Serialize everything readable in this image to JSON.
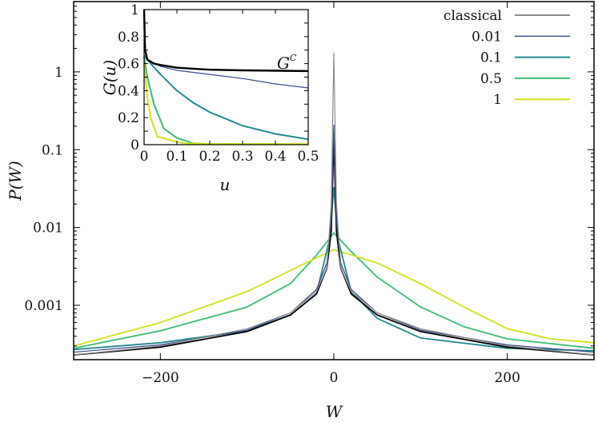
{
  "chart_data": [
    {
      "type": "line",
      "xlabel": "W",
      "ylabel": "P(W)",
      "xlim": [
        -300,
        300
      ],
      "ylim": [
        0.0002,
        8
      ],
      "yscale": "log",
      "grid": false,
      "legend_placement": "top-right",
      "x_ticks": [
        -200,
        0,
        200
      ],
      "x_tick_labels": [
        "−200",
        "0",
        "200"
      ],
      "y_ticks": [
        1,
        0.1,
        0.01,
        0.001
      ],
      "y_tick_labels": [
        "1",
        "0.1",
        "0.01",
        "0.001"
      ],
      "series": [
        {
          "name": "classical",
          "color": "#8c8c8c",
          "x": [
            -300,
            -200,
            -100,
            -50,
            -20,
            -8,
            -3,
            0,
            3,
            8,
            20,
            50,
            100,
            200,
            300
          ],
          "y": [
            0.00023,
            0.0003,
            0.0005,
            0.0008,
            0.0015,
            0.003,
            0.02,
            1.75,
            0.02,
            0.003,
            0.0015,
            0.0008,
            0.0005,
            0.0003,
            0.00023
          ]
        },
        {
          "name": "0.01",
          "color": "#3b4b8c",
          "x": [
            -300,
            -200,
            -100,
            -50,
            -20,
            -8,
            -3,
            0,
            3,
            8,
            20,
            50,
            100,
            200,
            300
          ],
          "y": [
            0.00025,
            0.00031,
            0.00048,
            0.0008,
            0.0016,
            0.0035,
            0.012,
            0.21,
            0.012,
            0.0035,
            0.0016,
            0.0008,
            0.00048,
            0.00031,
            0.00025
          ]
        },
        {
          "name": "0.1",
          "color": "#23898e",
          "x": [
            -300,
            -200,
            -100,
            -50,
            -20,
            -5,
            0,
            5,
            20,
            50,
            100,
            200,
            300
          ],
          "y": [
            0.00027,
            0.00033,
            0.00047,
            0.00075,
            0.0014,
            0.007,
            0.033,
            0.007,
            0.0015,
            0.00068,
            0.00038,
            0.00028,
            0.00026
          ]
        },
        {
          "name": "0.5",
          "color": "#3dbc74",
          "x": [
            -300,
            -200,
            -100,
            -50,
            -20,
            0,
            20,
            50,
            100,
            150,
            200,
            300
          ],
          "y": [
            0.00028,
            0.00047,
            0.00095,
            0.0019,
            0.0044,
            0.0085,
            0.0049,
            0.0023,
            0.00095,
            0.00053,
            0.00037,
            0.00028
          ]
        },
        {
          "name": "1",
          "color": "#d2e21b",
          "x": [
            -300,
            -200,
            -100,
            -50,
            0,
            50,
            100,
            150,
            200,
            250,
            300
          ],
          "y": [
            0.0003,
            0.0006,
            0.0015,
            0.0028,
            0.0052,
            0.0035,
            0.0019,
            0.00095,
            0.0005,
            0.00037,
            0.00033
          ]
        },
        {
          "color": "#000000",
          "x": [
            -300,
            -200,
            -100,
            -50,
            -20,
            -8,
            -3,
            0,
            3,
            8,
            20,
            50,
            100,
            200,
            300
          ],
          "y": [
            0.00023,
            0.00029,
            0.00046,
            0.00075,
            0.0014,
            0.003,
            0.009,
            0.15,
            0.009,
            0.003,
            0.0014,
            0.00075,
            0.00046,
            0.00029,
            0.00023
          ]
        }
      ]
    },
    {
      "type": "line",
      "xlabel": "u",
      "ylabel": "G(u)",
      "xlim": [
        0,
        0.5
      ],
      "ylim": [
        0,
        1
      ],
      "x_ticks": [
        0,
        0.1,
        0.2,
        0.3,
        0.4,
        0.5
      ],
      "x_tick_labels": [
        "0",
        "0.1",
        "0.2",
        "0.3",
        "0.4",
        "0.5"
      ],
      "y_ticks": [
        0,
        0.2,
        0.4,
        0.6,
        0.8,
        1
      ],
      "y_tick_labels": [
        "0",
        "0.2",
        "0.4",
        "0.6",
        "0.8",
        "1"
      ],
      "annotation": "G",
      "annotation_superscript": "C",
      "series": [
        {
          "color": "#3b4b8c",
          "x": [
            0,
            0.005,
            0.01,
            0.05,
            0.1,
            0.2,
            0.3,
            0.4,
            0.5
          ],
          "y": [
            0.95,
            0.66,
            0.63,
            0.58,
            0.55,
            0.52,
            0.49,
            0.45,
            0.42
          ]
        },
        {
          "color": "#23898e",
          "x": [
            0,
            0.02,
            0.05,
            0.1,
            0.15,
            0.2,
            0.3,
            0.4,
            0.5
          ],
          "y": [
            0.66,
            0.6,
            0.52,
            0.4,
            0.31,
            0.24,
            0.14,
            0.08,
            0.04
          ]
        },
        {
          "color": "#3dbc74",
          "x": [
            0,
            0.01,
            0.03,
            0.06,
            0.1,
            0.15,
            0.2,
            0.5
          ],
          "y": [
            0.65,
            0.5,
            0.3,
            0.12,
            0.05,
            0.01,
            0.005,
            0.003
          ]
        },
        {
          "color": "#d2e21b",
          "x": [
            0,
            0.01,
            0.02,
            0.04,
            0.07,
            0.1,
            0.12,
            0.2,
            0.5
          ],
          "y": [
            0.6,
            0.35,
            0.2,
            0.06,
            0.04,
            0.02,
            0.01,
            0.006,
            0.005
          ]
        },
        {
          "color": "#000000",
          "x": [
            0,
            0.003,
            0.01,
            0.03,
            0.05,
            0.1,
            0.2,
            0.3,
            0.5
          ],
          "y": [
            1,
            0.7,
            0.63,
            0.6,
            0.59,
            0.57,
            0.555,
            0.55,
            0.545
          ]
        }
      ]
    }
  ]
}
